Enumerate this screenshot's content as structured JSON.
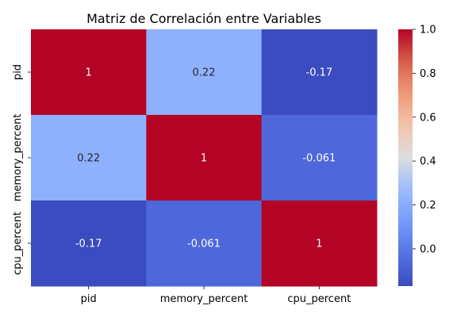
{
  "chart_data": {
    "type": "heatmap",
    "title": "Matriz de Correlación entre Variables",
    "x_categories": [
      "pid",
      "memory_percent",
      "cpu_percent"
    ],
    "y_categories": [
      "pid",
      "memory_percent",
      "cpu_percent"
    ],
    "values": [
      [
        1,
        0.22,
        -0.17
      ],
      [
        0.22,
        1,
        -0.061
      ],
      [
        -0.17,
        -0.061,
        1
      ]
    ],
    "cell_labels": [
      [
        "1",
        "0.22",
        "-0.17"
      ],
      [
        "0.22",
        "1",
        "-0.061"
      ],
      [
        "-0.17",
        "-0.061",
        "1"
      ]
    ],
    "colormap": "coolwarm",
    "vmin": -0.17,
    "vmax": 1.0,
    "colorbar_ticks": [
      "0.0",
      "0.2",
      "0.4",
      "0.6",
      "0.8",
      "1.0"
    ],
    "colorbar_tick_values": [
      0.0,
      0.2,
      0.4,
      0.6,
      0.8,
      1.0
    ]
  }
}
